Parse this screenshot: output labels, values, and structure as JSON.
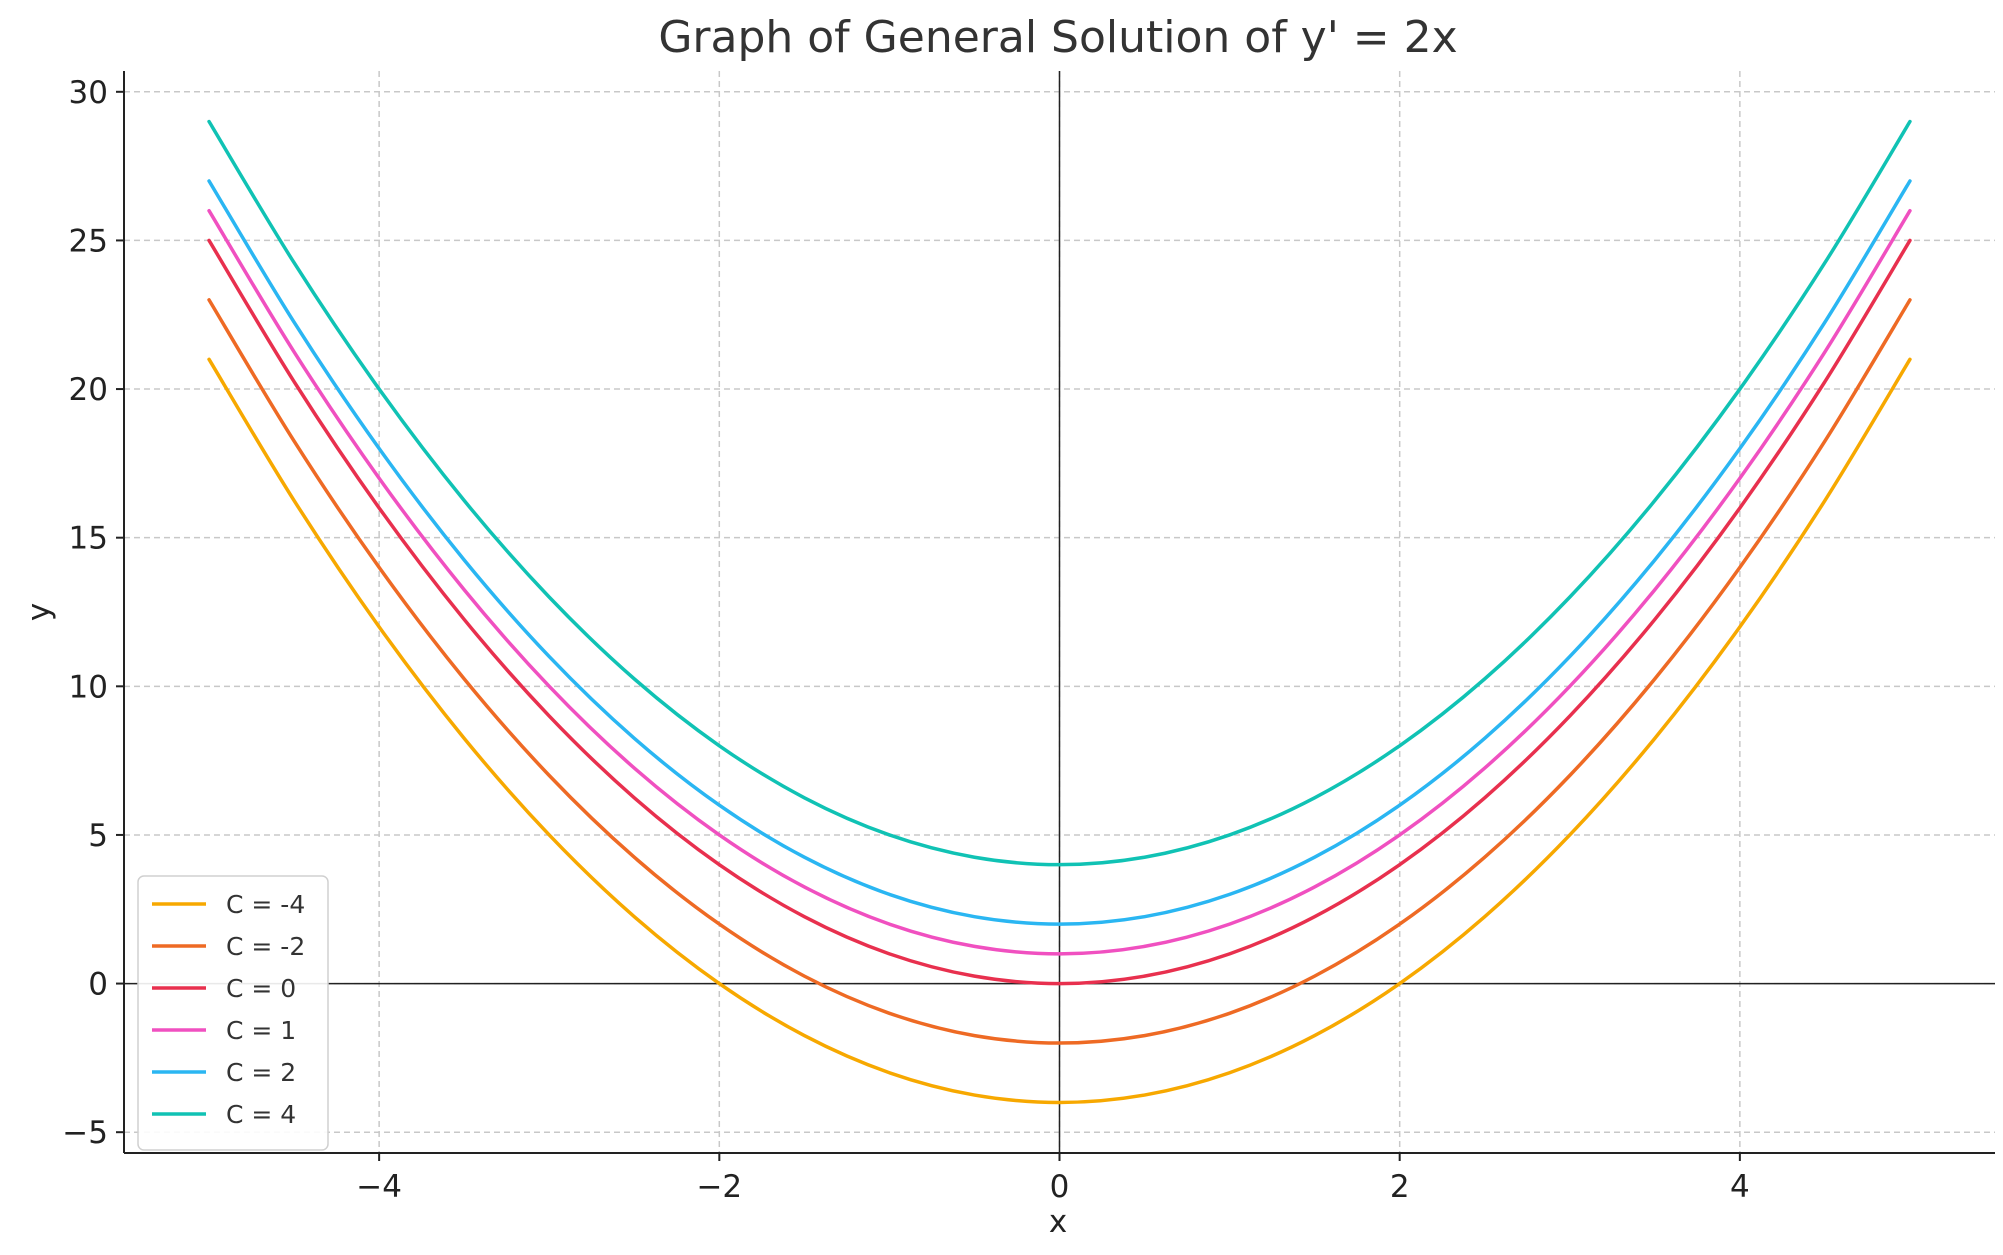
{
  "chart_data": {
    "type": "line",
    "title": "Graph of General Solution of y' = 2x",
    "xlabel": "x",
    "ylabel": "y",
    "xlim": [
      -5.5,
      5.5
    ],
    "ylim": [
      -5.7,
      30.7
    ],
    "x_ticks": [
      -4,
      -2,
      0,
      2,
      4
    ],
    "x_tick_labels": [
      "−4",
      "−2",
      "0",
      "2",
      "4"
    ],
    "y_ticks": [
      -5,
      0,
      5,
      10,
      15,
      20,
      25,
      30
    ],
    "y_tick_labels": [
      "−5",
      "0",
      "5",
      "10",
      "15",
      "20",
      "25",
      "30"
    ],
    "grid": true,
    "legend_position": "bottom-left",
    "x": [
      -5,
      -4.5,
      -4,
      -3.5,
      -3,
      -2.5,
      -2,
      -1.5,
      -1,
      -0.5,
      0,
      0.5,
      1,
      1.5,
      2,
      2.5,
      3,
      3.5,
      4,
      4.5,
      5
    ],
    "series": [
      {
        "name": "C = -4",
        "color": "#f7a800",
        "values": [
          21,
          16.25,
          12,
          8.25,
          5,
          2.25,
          0,
          -1.75,
          -3,
          -3.75,
          -4,
          -3.75,
          -3,
          -1.75,
          0,
          2.25,
          5,
          8.25,
          12,
          16.25,
          21
        ]
      },
      {
        "name": "C = -2",
        "color": "#ee6a24",
        "values": [
          23,
          18.25,
          14,
          10.25,
          7,
          4.25,
          2,
          0.25,
          -1,
          -1.75,
          -2,
          -1.75,
          -1,
          0.25,
          2,
          4.25,
          7,
          10.25,
          14,
          18.25,
          23
        ]
      },
      {
        "name": "C = 0",
        "color": "#e8304e",
        "values": [
          25,
          20.25,
          16,
          12.25,
          9,
          6.25,
          4,
          2.25,
          1,
          0.25,
          0,
          0.25,
          1,
          2.25,
          4,
          6.25,
          9,
          12.25,
          16,
          20.25,
          25
        ]
      },
      {
        "name": "C = 1",
        "color": "#f050c0",
        "values": [
          26,
          21.25,
          17,
          13.25,
          10,
          7.25,
          5,
          3.25,
          2,
          1.25,
          1,
          1.25,
          2,
          3.25,
          5,
          7.25,
          10,
          13.25,
          17,
          21.25,
          26
        ]
      },
      {
        "name": "C = 2",
        "color": "#2ab6f2",
        "values": [
          27,
          22.25,
          18,
          14.25,
          11,
          8.25,
          6,
          4.25,
          3,
          2.25,
          2,
          2.25,
          3,
          4.25,
          6,
          8.25,
          11,
          14.25,
          18,
          22.25,
          27
        ]
      },
      {
        "name": "C = 4",
        "color": "#10c2b4",
        "values": [
          29,
          24.25,
          20,
          16.25,
          13,
          10.25,
          8,
          6.25,
          5,
          4.25,
          4,
          4.25,
          5,
          6.25,
          8,
          10.25,
          13,
          16.25,
          20,
          24.25,
          29
        ]
      }
    ]
  }
}
